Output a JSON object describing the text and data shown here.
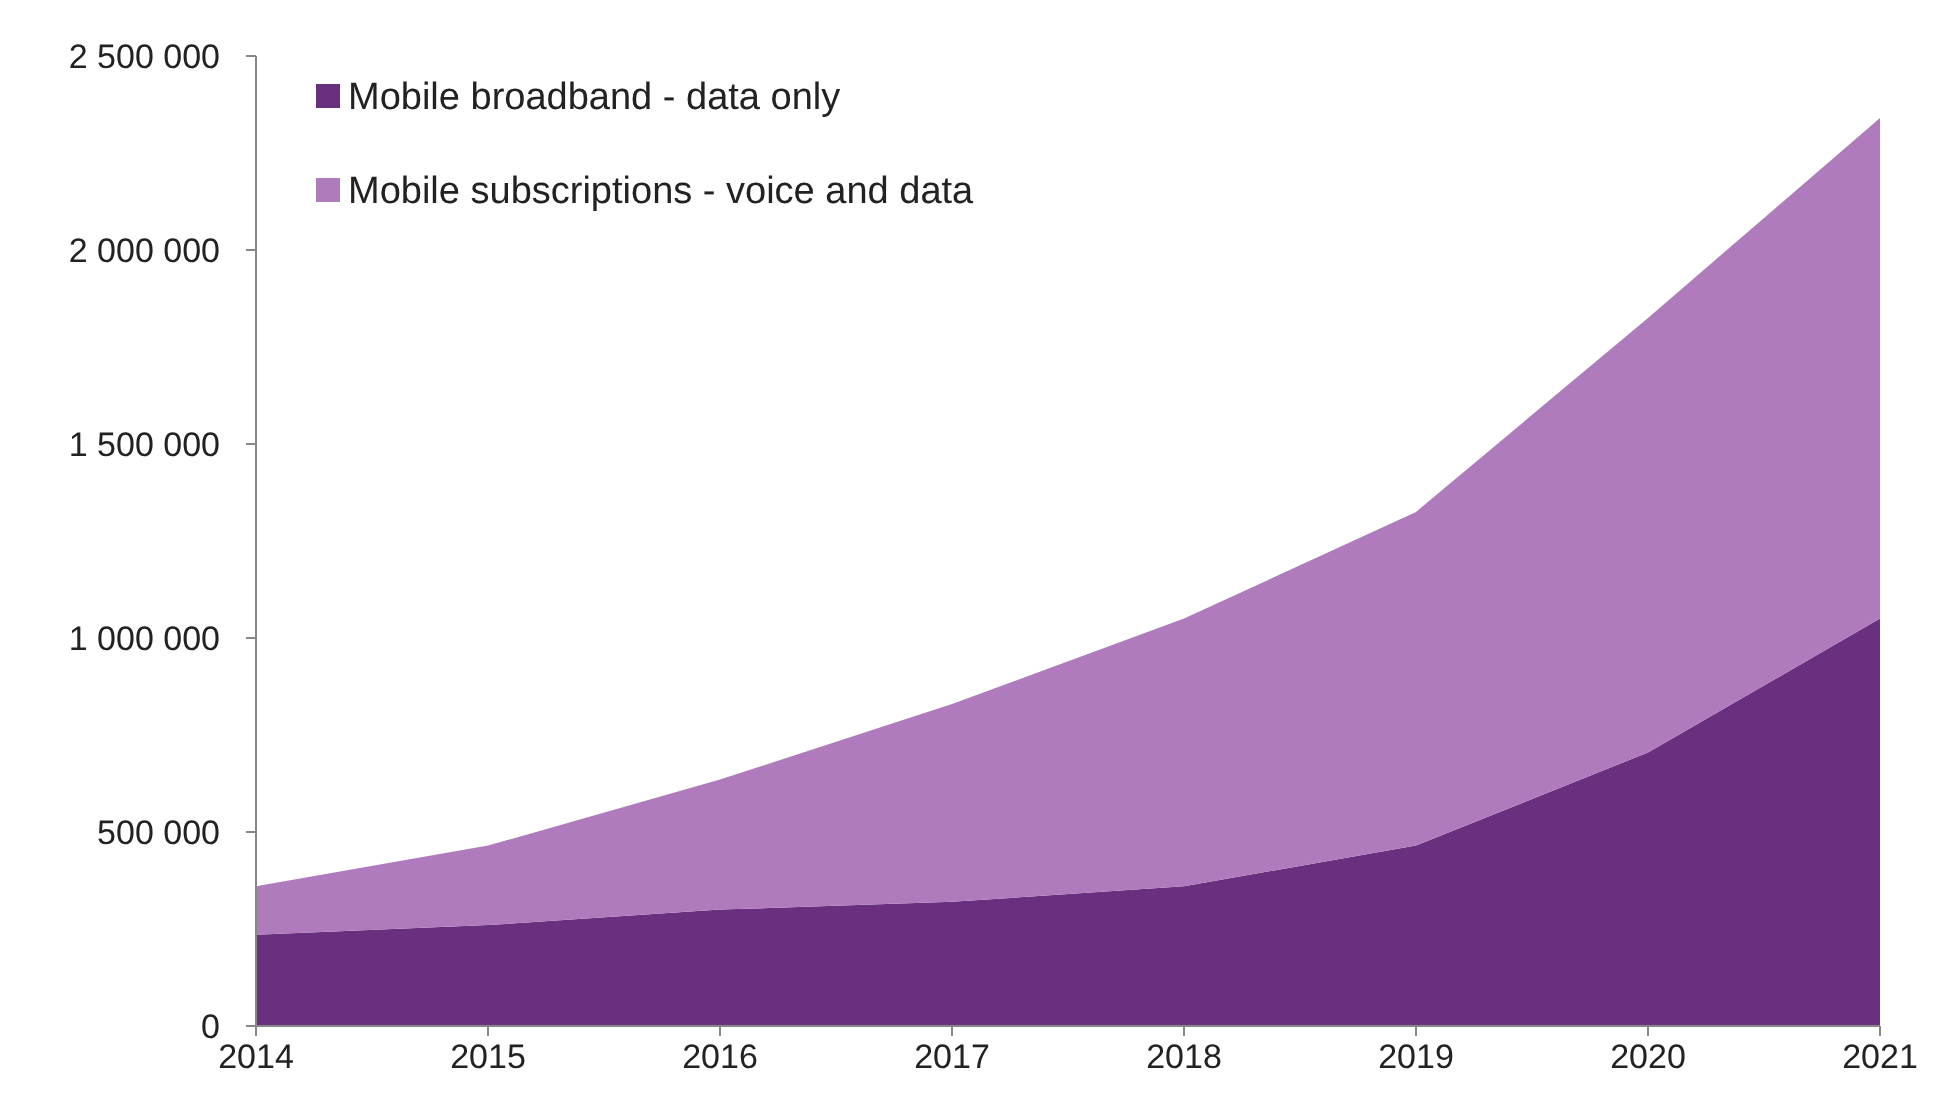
{
  "chart_data": {
    "type": "area",
    "stacked": true,
    "categories": [
      "2014",
      "2015",
      "2016",
      "2017",
      "2018",
      "2019",
      "2020",
      "2021"
    ],
    "series": [
      {
        "name": "Mobile broadband - data only",
        "color": "#6a2f7f",
        "values": [
          235000,
          260000,
          300000,
          320000,
          360000,
          465000,
          705000,
          1050000
        ]
      },
      {
        "name": "Mobile subscriptions - voice and data",
        "color": "#af7bbd",
        "values": [
          125000,
          205000,
          335000,
          510000,
          690000,
          860000,
          1120000,
          1290000
        ]
      }
    ],
    "ylim": [
      0,
      2500000
    ],
    "yticks": [
      0,
      {
        "value": 500000,
        "label": "500 000"
      },
      {
        "value": 1000000,
        "label": "1 000 000"
      },
      {
        "value": 1500000,
        "label": "1 500 000"
      },
      {
        "value": 2000000,
        "label": "2 000 000"
      },
      {
        "value": 2500000,
        "label": "2 500 000"
      }
    ],
    "grid": false,
    "legend": "top left"
  }
}
